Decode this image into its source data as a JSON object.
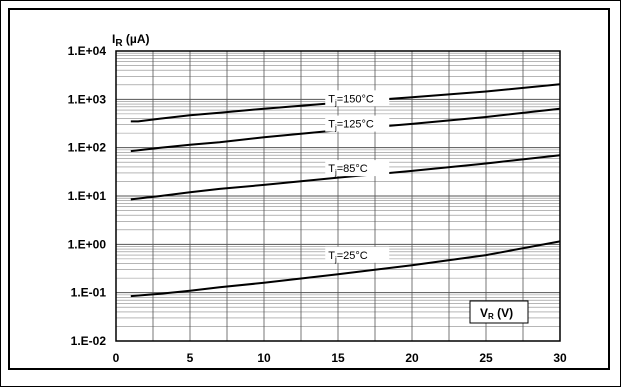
{
  "chart_data": {
    "type": "line",
    "ylabel": {
      "main": "I",
      "sub": "R",
      "unit": " (µA)"
    },
    "xlabel": {
      "main": "V",
      "sub": "R",
      "unit": " (V)"
    },
    "xlim": [
      0,
      30
    ],
    "x_ticks": [
      "0",
      "5",
      "10",
      "15",
      "20",
      "25",
      "30"
    ],
    "y_scale": "log",
    "ylim": [
      0.01,
      10000
    ],
    "y_ticks": [
      "1.E-02",
      "1.E-01",
      "1.E+00",
      "1.E+01",
      "1.E+02",
      "1.E+03",
      "1.E+04"
    ],
    "grid": true,
    "series": [
      {
        "name": "Tj=150°C",
        "label_main": "T",
        "label_sub": "j",
        "label_rest": "=150°C",
        "x": [
          1,
          1.5,
          3,
          5,
          7,
          10,
          15,
          20,
          25,
          30
        ],
        "y": [
          350,
          350,
          400,
          470,
          530,
          640,
          850,
          1100,
          1450,
          2050
        ]
      },
      {
        "name": "Tj=125°C",
        "label_main": "T",
        "label_sub": "j",
        "label_rest": "=125°C",
        "x": [
          1,
          3,
          5,
          7,
          10,
          15,
          20,
          25,
          30
        ],
        "y": [
          85,
          100,
          115,
          130,
          165,
          230,
          310,
          430,
          640
        ]
      },
      {
        "name": "Tj=85°C",
        "label_main": "T",
        "label_sub": "j",
        "label_rest": "=85°C",
        "x": [
          1,
          3,
          5,
          7,
          10,
          15,
          20,
          25,
          30
        ],
        "y": [
          8.5,
          10,
          12,
          14,
          17,
          24,
          33,
          47,
          70
        ]
      },
      {
        "name": "Tj=25°C",
        "label_main": "T",
        "label_sub": "j",
        "label_rest": "=25°C",
        "x": [
          1,
          3,
          5,
          7,
          10,
          15,
          20,
          25,
          30
        ],
        "y": [
          0.085,
          0.095,
          0.11,
          0.13,
          0.16,
          0.24,
          0.37,
          0.6,
          1.15
        ]
      }
    ]
  }
}
